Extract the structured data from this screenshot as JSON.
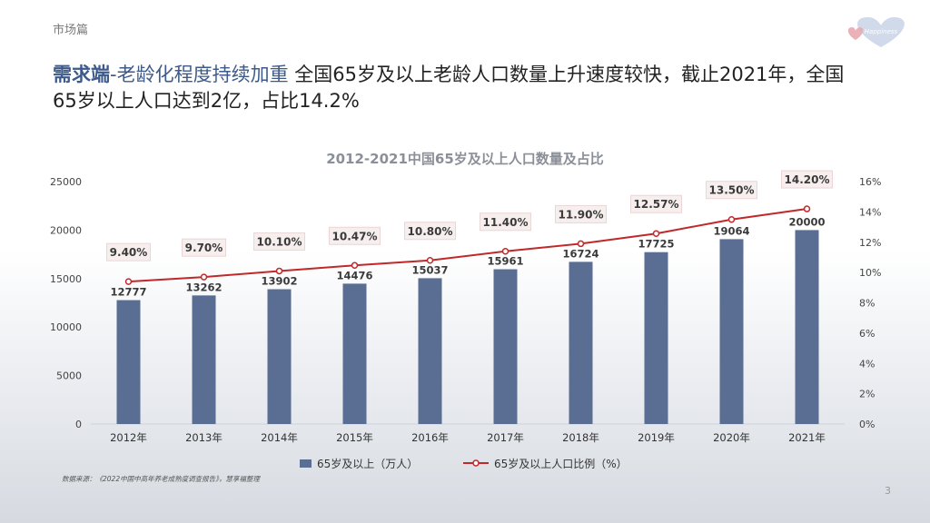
{
  "header": {
    "section": "市场篇",
    "headline_accent": "需求端",
    "headline_sub": "-老龄化程度持续加重",
    "headline_line1": " 全国65岁及以上老龄人口数量上升速度较快，截止2021年，全国",
    "headline_line2": "65岁以上人口达到2亿，占比14.2%"
  },
  "logo": {
    "text": "Happiness"
  },
  "footer": {
    "source": "数据来源：《2022中国中高年养老成熟度调查报告》，慧享福整理",
    "page": "3"
  },
  "colors": {
    "bar": "#5a6e93",
    "line": "#c0282a",
    "accent": "#3d5a8a"
  },
  "chart_data": {
    "type": "bar",
    "title": "2012-2021中国65岁及以上人口数量及占比",
    "categories": [
      "2012年",
      "2013年",
      "2014年",
      "2015年",
      "2016年",
      "2017年",
      "2018年",
      "2019年",
      "2020年",
      "2021年"
    ],
    "series": [
      {
        "name": "65岁及以上（万人）",
        "type": "bar",
        "axis": "left",
        "values": [
          12777,
          13262,
          13902,
          14476,
          15037,
          15961,
          16724,
          17725,
          19064,
          20000
        ]
      },
      {
        "name": "65岁及以上人口比例（%）",
        "type": "line",
        "axis": "right",
        "values": [
          9.4,
          9.7,
          10.1,
          10.47,
          10.8,
          11.4,
          11.9,
          12.57,
          13.5,
          14.2
        ],
        "labels": [
          "9.40%",
          "9.70%",
          "10.10%",
          "10.47%",
          "10.80%",
          "11.40%",
          "11.90%",
          "12.57%",
          "13.50%",
          "14.20%"
        ]
      }
    ],
    "ylim": [
      0,
      25000
    ],
    "yticks": [
      "0",
      "5000",
      "10000",
      "15000",
      "20000",
      "25000"
    ],
    "y2lim": [
      0,
      16
    ],
    "y2ticks": [
      "0%",
      "2%",
      "4%",
      "6%",
      "8%",
      "10%",
      "12%",
      "14%",
      "16%"
    ],
    "legend": "bottom"
  }
}
